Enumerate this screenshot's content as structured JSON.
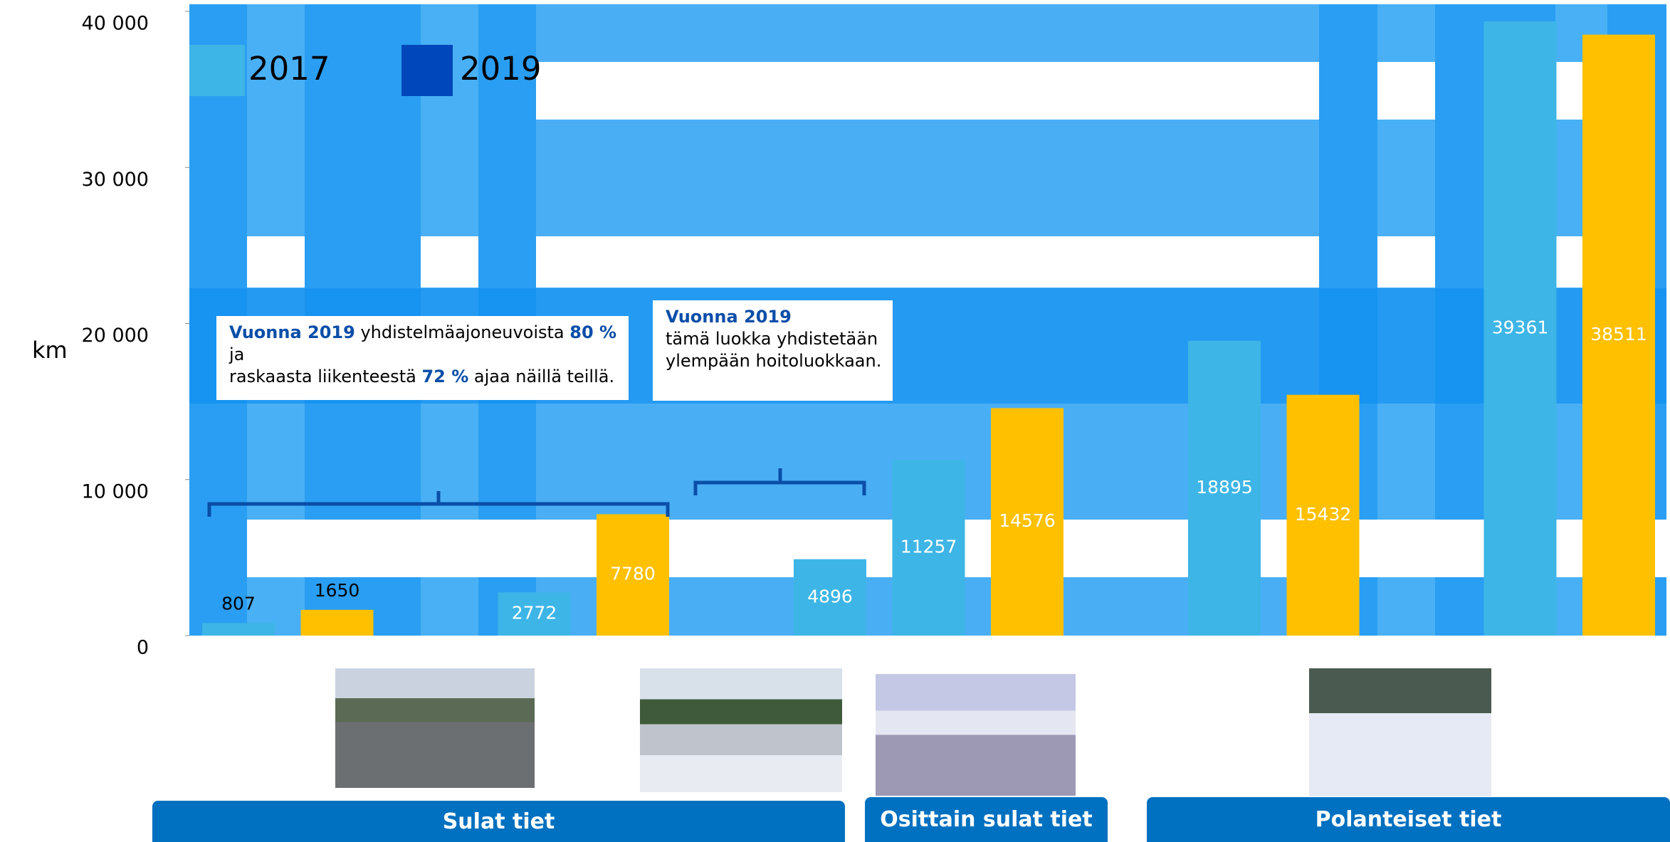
{
  "chart_data": {
    "type": "bar",
    "y_label": "km",
    "categories": [
      null,
      null,
      null,
      null,
      null,
      null
    ],
    "series": [
      {
        "name": "2017",
        "color": "#3db5e6",
        "legend_color": "#3db5e6",
        "values": [
          807,
          2772,
          4896,
          11257,
          18895,
          39361
        ]
      },
      {
        "name": "2019",
        "color": "#ffc000",
        "legend_color": "#0047bb",
        "values": [
          1650,
          7780,
          null,
          14576,
          15432,
          38511
        ]
      }
    ],
    "ylim": [
      0,
      40000
    ],
    "yticks": [
      0,
      {
        "value": 10000,
        "label": "10 000"
      },
      {
        "value": 20000,
        "label": "20 000"
      },
      {
        "value": 30000,
        "label": "30 000"
      },
      {
        "value": 40000,
        "label": "40 000"
      }
    ],
    "legend": "upper left",
    "annotations": [
      {
        "lines": [
          [
            {
              "text": "Vuonna 2019",
              "bold": true
            },
            {
              "text": " yhdistelmäajoneuvoista ",
              "bold": false
            },
            {
              "text": "80 %",
              "bold": true
            }
          ],
          [
            {
              "text": "ja",
              "bold": false
            }
          ],
          [
            {
              "text": "raskaasta liikenteestä ",
              "bold": false
            },
            {
              "text": "72 %",
              "bold": true
            },
            {
              "text": " ajaa näillä teillä.",
              "bold": false
            }
          ]
        ]
      },
      {
        "lines": [
          [
            {
              "text": "Vuonna 2019",
              "bold": true
            }
          ],
          [
            {
              "text": "tämä luokka yhdistetään",
              "bold": false
            }
          ],
          [
            {
              "text": "ylempään hoitoluokkaan.",
              "bold": false
            }
          ]
        ]
      }
    ],
    "road_groups": [
      "Sulat tiet",
      "Osittain sulat tiet",
      "Polanteiset tiet"
    ]
  }
}
